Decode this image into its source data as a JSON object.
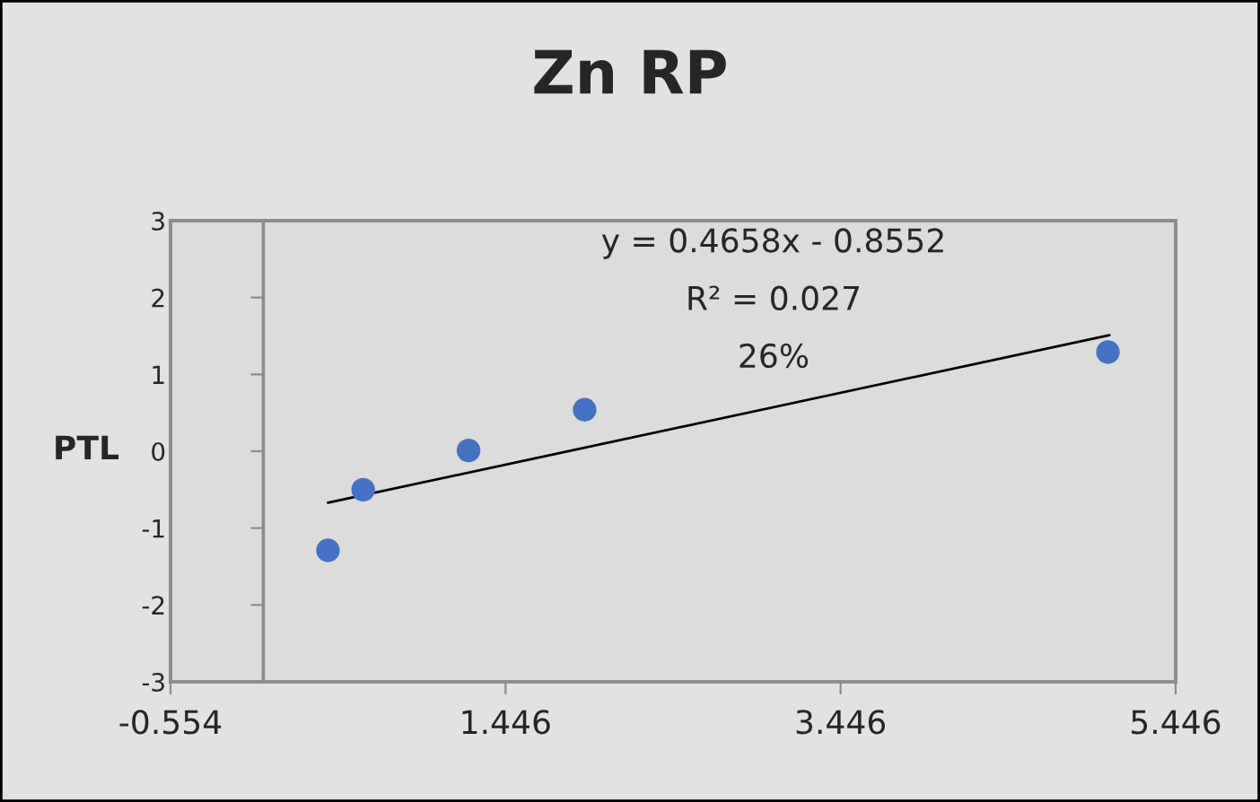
{
  "chart_data": {
    "type": "scatter",
    "title": "Zn RP",
    "ylabel": "PTL",
    "series": [
      {
        "color": "#4472c4",
        "marker": "circle",
        "x": [
          0.386,
          0.596,
          1.225,
          1.918,
          5.042
        ],
        "values": [
          -1.29,
          -0.5,
          0.01,
          0.54,
          1.29
        ]
      },
      {
        "type": "line",
        "marker": "none",
        "color": "#000000",
        "x": [
          0.386,
          5.05
        ],
        "values": [
          -0.67,
          1.51
        ]
      }
    ],
    "annotations": [
      "y = 0.4658x - 0.8552",
      "R² = 0.027",
      "26%"
    ],
    "xlim": [
      -0.554,
      5.446
    ],
    "xticks": [
      -0.554,
      1.446,
      3.446,
      5.446
    ],
    "ylim": [
      -3,
      3
    ],
    "yticks": [
      -3,
      -2,
      -1,
      0,
      1,
      2,
      3
    ],
    "grid": false,
    "legend": false
  }
}
